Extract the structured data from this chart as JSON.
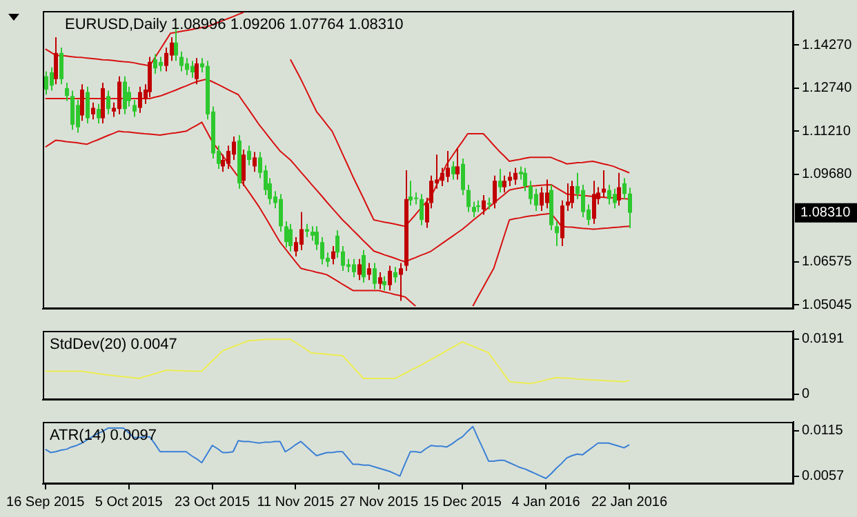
{
  "chart_data": [
    {
      "type": "candlestick",
      "title": "EURUSD,Daily 1.08996 1.09206 1.07764 1.08310",
      "categories": [
        null,
        null,
        null,
        null,
        null,
        null,
        null,
        null,
        null,
        null,
        null,
        null,
        null,
        null,
        null,
        null,
        null,
        null,
        null,
        null,
        null,
        null,
        null,
        null,
        null,
        null,
        null,
        null,
        null,
        null,
        null,
        null,
        null,
        null,
        null,
        null,
        null,
        null,
        null,
        null,
        null,
        null,
        null,
        null,
        null,
        null,
        null,
        null,
        null,
        null,
        null,
        null,
        null,
        null,
        null,
        null,
        null,
        null,
        null,
        null,
        null,
        null,
        null,
        null,
        null,
        null,
        null,
        null,
        null,
        null,
        null,
        null,
        null,
        null,
        null,
        null,
        null,
        null,
        null,
        null,
        null,
        null,
        null,
        null,
        null,
        null,
        null,
        null,
        null,
        null,
        null,
        null,
        null,
        null,
        null,
        null,
        null,
        null,
        null,
        null,
        null,
        null,
        null,
        null,
        null,
        null,
        null,
        null,
        null,
        null,
        null,
        null,
        null
      ],
      "ohlc": [
        [
          1.1316,
          1.1334,
          1.1251,
          1.1269
        ],
        [
          1.133,
          1.1348,
          1.1265,
          1.1283
        ],
        [
          1.1306,
          1.1455,
          1.1288,
          1.1399
        ],
        [
          1.1399,
          1.1418,
          1.1288,
          1.1306
        ],
        [
          1.1274,
          1.1293,
          1.1228,
          1.1246
        ],
        [
          1.1246,
          1.1265,
          1.1126,
          1.1144
        ],
        [
          1.1214,
          1.1232,
          1.1116,
          1.1135
        ],
        [
          1.1177,
          1.1288,
          1.1158,
          1.1269
        ],
        [
          1.126,
          1.1279,
          1.1149,
          1.1167
        ],
        [
          1.1181,
          1.1223,
          1.1163,
          1.1204
        ],
        [
          1.12,
          1.1218,
          1.1149,
          1.1167
        ],
        [
          1.1167,
          1.1293,
          1.1149,
          1.1274
        ],
        [
          1.1246,
          1.1265,
          1.1181,
          1.12
        ],
        [
          1.1191,
          1.1223,
          1.1172,
          1.1204
        ],
        [
          1.12,
          1.1316,
          1.1181,
          1.1297
        ],
        [
          1.1297,
          1.1316,
          1.1181,
          1.12
        ],
        [
          1.126,
          1.1279,
          1.1209,
          1.1228
        ],
        [
          1.1214,
          1.1232,
          1.1172,
          1.1191
        ],
        [
          1.1204,
          1.1279,
          1.1186,
          1.126
        ],
        [
          1.1237,
          1.1288,
          1.1218,
          1.1269
        ],
        [
          1.126,
          1.1385,
          1.1242,
          1.1367
        ],
        [
          1.1376,
          1.1395,
          1.1325,
          1.1344
        ],
        [
          1.1367,
          1.1385,
          1.1334,
          1.1353
        ],
        [
          1.1353,
          1.1418,
          1.1334,
          1.1399
        ],
        [
          1.139,
          1.1455,
          1.1371,
          1.1436
        ],
        [
          1.1436,
          1.1483,
          1.1371,
          1.139
        ],
        [
          1.1385,
          1.1404,
          1.1334,
          1.1353
        ],
        [
          1.1362,
          1.1381,
          1.132,
          1.1339
        ],
        [
          1.1353,
          1.1371,
          1.1311,
          1.133
        ],
        [
          1.1306,
          1.1381,
          1.1288,
          1.1362
        ],
        [
          1.1362,
          1.1381,
          1.133,
          1.1348
        ],
        [
          1.1353,
          1.1371,
          1.1163,
          1.1181
        ],
        [
          1.1191,
          1.1209,
          1.1024,
          1.1042
        ],
        [
          1.1051,
          1.107,
          1.0987,
          1.1005
        ],
        [
          1.0996,
          1.1038,
          1.0977,
          1.1019
        ],
        [
          1.1005,
          1.107,
          1.0987,
          1.1051
        ],
        [
          1.1038,
          1.1102,
          1.1019,
          1.1084
        ],
        [
          1.1088,
          1.1107,
          1.0917,
          1.0936
        ],
        [
          1.0945,
          1.1056,
          1.0926,
          1.1038
        ],
        [
          1.1051,
          1.107,
          1.1,
          1.1019
        ],
        [
          1.0996,
          1.1047,
          1.0977,
          1.1028
        ],
        [
          1.1028,
          1.1047,
          1.0954,
          1.0973
        ],
        [
          1.0982,
          1.1,
          1.0894,
          1.0912
        ],
        [
          1.0936,
          1.0954,
          1.0861,
          1.088
        ],
        [
          1.0889,
          1.0908,
          1.0847,
          1.0866
        ],
        [
          1.088,
          1.0898,
          1.0764,
          1.0783
        ],
        [
          1.0783,
          1.0801,
          1.0708,
          1.0727
        ],
        [
          1.0773,
          1.0792,
          1.0694,
          1.0713
        ],
        [
          1.0694,
          1.0745,
          1.0676,
          1.0727
        ],
        [
          1.0718,
          1.0834,
          1.0699,
          1.0773
        ],
        [
          1.0773,
          1.0792,
          1.0745,
          1.0764
        ],
        [
          1.0764,
          1.0783,
          1.0732,
          1.075
        ],
        [
          1.0764,
          1.0783,
          1.0699,
          1.0718
        ],
        [
          1.0727,
          1.0745,
          1.0648,
          1.0667
        ],
        [
          1.0671,
          1.069,
          1.0639,
          1.0657
        ],
        [
          1.0667,
          1.0713,
          1.0648,
          1.0694
        ],
        [
          1.075,
          1.0769,
          1.0671,
          1.069
        ],
        [
          1.0694,
          1.0713,
          1.0625,
          1.0643
        ],
        [
          1.0648,
          1.0667,
          1.062,
          1.0639
        ],
        [
          1.0648,
          1.0667,
          1.0602,
          1.062
        ],
        [
          1.0611,
          1.0667,
          1.0592,
          1.0648
        ],
        [
          1.0681,
          1.0699,
          1.0583,
          1.0602
        ],
        [
          1.0611,
          1.0653,
          1.0592,
          1.0634
        ],
        [
          1.0634,
          1.0653,
          1.056,
          1.0579
        ],
        [
          1.0579,
          1.062,
          1.056,
          1.0602
        ],
        [
          1.0588,
          1.0606,
          1.0555,
          1.0574
        ],
        [
          1.0574,
          1.0643,
          1.0555,
          1.0625
        ],
        [
          1.062,
          1.0639,
          1.0583,
          1.0602
        ],
        [
          1.0611,
          1.0653,
          1.0518,
          1.0634
        ],
        [
          1.0643,
          1.0982,
          1.0625,
          1.088
        ],
        [
          1.0889,
          1.0945,
          1.0857,
          1.0875
        ],
        [
          1.0885,
          1.0903,
          1.0861,
          1.088
        ],
        [
          1.088,
          1.0898,
          1.0787,
          1.0806
        ],
        [
          1.0797,
          1.0885,
          1.0778,
          1.0866
        ],
        [
          1.0866,
          1.0963,
          1.0847,
          1.0945
        ],
        [
          1.0936,
          1.1038,
          1.0917,
          1.0949
        ],
        [
          1.0945,
          1.0991,
          1.0926,
          1.0973
        ],
        [
          1.0959,
          1.1051,
          1.094,
          1.0991
        ],
        [
          1.0996,
          1.1014,
          1.0949,
          1.0968
        ],
        [
          1.0968,
          1.1061,
          1.0949,
          1.0996
        ],
        [
          1.1005,
          1.1024,
          1.0894,
          1.0912
        ],
        [
          1.0912,
          1.0931,
          1.0834,
          1.0852
        ],
        [
          1.0852,
          1.0871,
          1.0815,
          1.0834
        ],
        [
          1.0857,
          1.0875,
          1.0834,
          1.0852
        ],
        [
          1.0843,
          1.0894,
          1.0824,
          1.0875
        ],
        [
          1.0866,
          1.0885,
          1.0843,
          1.0861
        ],
        [
          1.0866,
          1.0963,
          1.0847,
          1.0945
        ],
        [
          1.0945,
          1.0987,
          1.0903,
          1.0922
        ],
        [
          1.0922,
          1.0963,
          1.0903,
          1.0945
        ],
        [
          1.0945,
          1.0977,
          1.0926,
          1.0959
        ],
        [
          1.0949,
          1.0991,
          1.0931,
          1.0973
        ],
        [
          1.0977,
          1.0996,
          1.0949,
          1.0968
        ],
        [
          1.0973,
          1.0991,
          1.0908,
          1.0926
        ],
        [
          1.0926,
          1.0945,
          1.0861,
          1.088
        ],
        [
          1.0898,
          1.0917,
          1.0838,
          1.0857
        ],
        [
          1.0857,
          1.0922,
          1.0838,
          1.0903
        ],
        [
          1.0866,
          1.0949,
          1.0847,
          1.0903
        ],
        [
          1.0912,
          1.0931,
          1.0769,
          1.0787
        ],
        [
          1.0783,
          1.0801,
          1.0713,
          1.0759
        ],
        [
          1.0741,
          1.0875,
          1.0713,
          1.0857
        ],
        [
          1.0857,
          1.0936,
          1.0838,
          1.0871
        ],
        [
          1.0866,
          1.0945,
          1.0847,
          1.0926
        ],
        [
          1.0926,
          1.0973,
          1.088,
          1.0898
        ],
        [
          1.0912,
          1.0931,
          1.0815,
          1.0834
        ],
        [
          1.0843,
          1.0861,
          1.0787,
          1.0806
        ],
        [
          1.081,
          1.0945,
          1.0792,
          1.0898
        ],
        [
          1.088,
          1.0922,
          1.0861,
          1.0903
        ],
        [
          1.0903,
          1.0982,
          1.0885,
          1.0917
        ],
        [
          1.0912,
          1.0931,
          1.0861,
          1.088
        ],
        [
          1.0898,
          1.0917,
          1.0847,
          1.0866
        ],
        [
          1.0875,
          1.0973,
          1.0857,
          1.0922
        ],
        [
          1.0936,
          1.0954,
          1.088,
          1.0898
        ],
        [
          1.08996,
          1.09206,
          1.07764,
          1.0831
        ]
      ],
      "colors": [
        "#2ec82e",
        "#2ec82e",
        "#c00000",
        "#2ec82e",
        "#2ec82e",
        "#2ec82e",
        "#2ec82e",
        "#c00000",
        "#2ec82e",
        "#c00000",
        "#2ec82e",
        "#c00000",
        "#2ec82e",
        "#c00000",
        "#c00000",
        "#2ec82e",
        "#2ec82e",
        "#2ec82e",
        "#c00000",
        "#c00000",
        "#c00000",
        "#2ec82e",
        "#2ec82e",
        "#c00000",
        "#c00000",
        "#2ec82e",
        "#2ec82e",
        "#2ec82e",
        "#2ec82e",
        "#c00000",
        "#2ec82e",
        "#2ec82e",
        "#2ec82e",
        "#2ec82e",
        "#c00000",
        "#c00000",
        "#c00000",
        "#2ec82e",
        "#c00000",
        "#2ec82e",
        "#c00000",
        "#2ec82e",
        "#2ec82e",
        "#2ec82e",
        "#2ec82e",
        "#2ec82e",
        "#2ec82e",
        "#2ec82e",
        "#c00000",
        "#c00000",
        "#2ec82e",
        "#2ec82e",
        "#2ec82e",
        "#2ec82e",
        "#2ec82e",
        "#c00000",
        "#2ec82e",
        "#2ec82e",
        "#2ec82e",
        "#2ec82e",
        "#c00000",
        "#2ec82e",
        "#c00000",
        "#2ec82e",
        "#c00000",
        "#2ec82e",
        "#c00000",
        "#2ec82e",
        "#c00000",
        "#c00000",
        "#2ec82e",
        "#2ec82e",
        "#2ec82e",
        "#c00000",
        "#c00000",
        "#c00000",
        "#c00000",
        "#c00000",
        "#2ec82e",
        "#c00000",
        "#2ec82e",
        "#2ec82e",
        "#2ec82e",
        "#2ec82e",
        "#c00000",
        "#2ec82e",
        "#c00000",
        "#2ec82e",
        "#c00000",
        "#c00000",
        "#c00000",
        "#2ec82e",
        "#2ec82e",
        "#2ec82e",
        "#2ec82e",
        "#c00000",
        "#c00000",
        "#2ec82e",
        "#2ec82e",
        "#c00000",
        "#c00000",
        "#c00000",
        "#2ec82e",
        "#2ec82e",
        "#2ec82e",
        "#c00000",
        "#c00000",
        "#c00000",
        "#2ec82e",
        "#2ec82e",
        "#c00000",
        "#2ec82e",
        "#2ec82e"
      ],
      "series": [
        {
          "type": "line",
          "color": "#d81010",
          "values": [
            1.1413,
            1.1402,
            1.139,
            1.139,
            1.1388,
            1.1386,
            1.1384,
            1.1383,
            1.1381,
            1.1379,
            1.1377,
            1.1375,
            1.1374,
            1.1372,
            1.137,
            1.1368,
            1.1367,
            1.1364,
            1.136,
            1.1357,
            1.1353,
            1.1382,
            1.1411,
            1.144,
            1.1469,
            1.1472,
            1.1476,
            1.1479,
            1.1482,
            1.1486,
            1.1489,
            1.1492,
            1.1499,
            1.1507,
            1.1514,
            1.1521,
            1.1528,
            1.1536,
            1.1543,
            null,
            null,
            null,
            null,
            null,
            null,
            null,
            null,
            1.1376,
            1.1341,
            1.1306,
            1.1268,
            1.1229,
            1.1191,
            1.1168,
            1.1144,
            1.1121,
            1.1081,
            1.104,
            1.1,
            1.0959,
            1.0921,
            1.0883,
            1.0844,
            1.0806,
            1.0802,
            1.0798,
            1.0795,
            1.0791,
            1.0787,
            1.0783,
            1.0804,
            1.0825,
            1.0847,
            1.0868,
            1.0889,
            1.0928,
            1.0966,
            1.1005,
            1.1032,
            1.1059,
            1.1085,
            1.1112,
            1.1112,
            1.1112,
            1.1112,
            1.1092,
            1.1071,
            1.1051,
            1.1033,
            1.1014,
            1.1018,
            1.1021,
            1.1025,
            1.1028,
            1.1028,
            1.1028,
            1.1028,
            1.1028,
            1.102,
            1.1013,
            1.1005,
            1.1007,
            1.1009,
            1.101,
            1.1012,
            1.1014,
            1.101,
            1.1005,
            1.1001,
            1.0996,
            1.0988,
            1.0981,
            1.0973
          ]
        },
        {
          "type": "line",
          "color": "#d81010",
          "values": [
            1.1237,
            1.1237,
            1.1237,
            1.1237,
            1.1237,
            1.1237,
            1.1237,
            1.1237,
            1.1237,
            1.1237,
            1.1237,
            1.1237,
            1.1237,
            1.1237,
            1.1237,
            1.1237,
            1.1237,
            1.1237,
            1.1237,
            1.1237,
            1.1237,
            1.1242,
            1.1246,
            1.1253,
            1.126,
            1.1267,
            1.1275,
            1.1282,
            1.129,
            1.1297,
            1.1302,
            1.1306,
            1.1297,
            1.1288,
            1.1279,
            1.1269,
            1.126,
            1.1251,
            1.1224,
            1.1198,
            1.1171,
            1.1144,
            1.1121,
            1.1097,
            1.1074,
            1.1051,
            1.1035,
            1.1019,
            1.0998,
            1.0976,
            1.0955,
            1.0933,
            1.0912,
            1.0891,
            1.0869,
            1.0848,
            1.0827,
            1.0806,
            1.0788,
            1.0769,
            1.0751,
            1.0732,
            1.0714,
            1.0695,
            1.0689,
            1.0682,
            1.0676,
            1.067,
            1.0663,
            1.0657,
            1.0665,
            1.0672,
            1.068,
            1.0687,
            1.0695,
            1.0708,
            1.0721,
            1.0734,
            1.0747,
            1.076,
            1.0773,
            1.0788,
            1.0804,
            1.0819,
            1.0834,
            1.085,
            1.0865,
            1.0881,
            1.0896,
            1.0912,
            1.0916,
            1.0919,
            1.0923,
            1.0926,
            1.0927,
            1.0929,
            1.093,
            1.0931,
            1.092,
            1.0909,
            1.0898,
            1.0896,
            1.0894,
            1.0893,
            1.0891,
            1.0889,
            1.0888,
            1.0886,
            1.0885,
            1.0884,
            1.0882,
            1.0881,
            1.088
          ]
        },
        {
          "type": "line",
          "color": "#d81010",
          "values": [
            1.1065,
            1.1077,
            1.1089,
            1.1087,
            1.1084,
            1.1082,
            1.108,
            1.1077,
            1.1075,
            1.1083,
            1.109,
            1.1098,
            1.1106,
            1.1113,
            1.1121,
            1.1119,
            1.1118,
            1.1116,
            1.1114,
            1.1112,
            1.1111,
            1.1109,
            1.1107,
            1.111,
            1.1113,
            1.1115,
            1.1118,
            1.1121,
            1.1132,
            1.1142,
            1.1153,
            1.1119,
            1.1084,
            1.1059,
            1.1034,
            1.1009,
            1.0984,
            1.0959,
            1.0932,
            1.0906,
            1.0879,
            1.0852,
            1.0821,
            1.079,
            1.0758,
            1.0727,
            1.0704,
            1.068,
            1.0657,
            1.0634,
            1.0629,
            1.0625,
            1.062,
            1.0616,
            1.0611,
            1.06,
            1.0589,
            1.0577,
            1.0566,
            1.0555,
            1.0555,
            1.0555,
            1.0555,
            1.0555,
            1.0555,
            1.055,
            1.0546,
            1.0541,
            1.0537,
            1.0532,
            1.0516,
            1.05,
            null,
            null,
            null,
            null,
            null,
            null,
            null,
            null,
            null,
            null,
            1.05,
            1.0534,
            1.0567,
            1.0601,
            1.0634,
            1.0691,
            1.0749,
            1.0806,
            1.081,
            1.0813,
            1.0817,
            1.082,
            1.0822,
            1.0825,
            1.0827,
            1.0829,
            1.0806,
            1.0783,
            1.0781,
            1.078,
            1.0778,
            1.0776,
            1.0775,
            1.0773,
            1.0774,
            1.0776,
            1.0777,
            1.0779,
            1.078,
            1.0782,
            1.0783
          ]
        }
      ],
      "ylim": [
        1.049,
        1.1548
      ],
      "yticks": [
        {
          "value": 1.1427,
          "label": "1.14270"
        },
        {
          "value": 1.1274,
          "label": "1.12740"
        },
        {
          "value": 1.1121,
          "label": "1.11210"
        },
        {
          "value": 1.0968,
          "label": "1.09680"
        },
        {
          "value": 1.06575,
          "label": "1.06575"
        },
        {
          "value": 1.05045,
          "label": "1.05045"
        }
      ],
      "tick_labels": "y",
      "annotations": [
        "1.08310"
      ]
    },
    {
      "type": "line",
      "title": "StdDev(20) 0.0047",
      "color": "#ecec50",
      "categories": [
        null,
        null,
        null,
        null,
        null,
        null,
        null,
        null,
        null,
        null,
        null,
        null,
        null,
        null,
        null,
        null,
        null,
        null,
        null,
        null,
        null,
        null,
        null,
        null,
        null,
        null,
        null,
        null,
        null,
        null,
        null,
        null,
        null,
        null,
        null,
        null,
        null,
        null,
        null,
        null,
        null,
        null,
        null,
        null,
        null,
        null,
        null,
        null,
        null,
        null,
        null,
        null,
        null,
        null,
        null,
        null,
        null,
        null,
        null,
        null,
        null,
        null,
        null,
        null,
        null,
        null,
        null,
        null,
        null,
        null,
        null,
        null,
        null,
        null,
        null,
        null,
        null,
        null,
        null,
        null,
        null,
        null,
        null,
        null,
        null,
        null,
        null,
        null,
        null,
        null,
        null,
        null,
        null,
        null,
        null,
        null,
        null,
        null,
        null,
        null,
        null,
        null,
        null,
        null,
        null,
        null,
        null,
        null,
        null,
        null,
        null,
        null,
        null
      ],
      "values": [
        0.0079,
        0.0079,
        0.0079,
        0.0079,
        0.0079,
        0.0079,
        0.0079,
        0.0079,
        0.0076,
        0.0074,
        0.0071,
        0.0069,
        0.0066,
        0.0064,
        0.0062,
        0.006,
        0.0058,
        0.0056,
        0.0054,
        0.006,
        0.0065,
        0.0071,
        0.0076,
        0.0082,
        0.0082,
        0.0081,
        0.0081,
        0.008,
        0.008,
        0.0079,
        0.0079,
        0.0097,
        0.0115,
        0.0132,
        0.015,
        0.0157,
        0.0164,
        0.0171,
        0.0178,
        0.0185,
        0.0186,
        0.0188,
        0.0189,
        0.019,
        0.019,
        0.019,
        0.019,
        0.019,
        0.0178,
        0.0167,
        0.0155,
        0.0143,
        0.0141,
        0.014,
        0.0138,
        0.0136,
        0.0135,
        0.0133,
        0.0113,
        0.0094,
        0.0074,
        0.0054,
        0.0054,
        0.0054,
        0.0054,
        0.0054,
        0.0054,
        0.0054,
        0.0063,
        0.0072,
        0.0082,
        0.0091,
        0.01,
        0.011,
        0.012,
        0.013,
        0.014,
        0.0151,
        0.0161,
        0.0171,
        0.0181,
        0.0173,
        0.0166,
        0.0158,
        0.0151,
        0.0143,
        0.0118,
        0.0093,
        0.0068,
        0.0043,
        0.0041,
        0.004,
        0.0038,
        0.0036,
        0.004,
        0.0044,
        0.0049,
        0.0053,
        0.0057,
        0.0056,
        0.0055,
        0.0054,
        0.0052,
        0.0051,
        0.005,
        0.0049,
        0.0048,
        0.0047,
        0.0046,
        0.0045,
        0.0044,
        0.0043,
        0.0047
      ],
      "ylim": [
        -0.002,
        0.0219
      ],
      "yticks": [
        0.0191,
        0
      ],
      "tick_labels": "y"
    },
    {
      "type": "line",
      "title": "ATR(14) 0.0097",
      "color": "#3a7fd5",
      "categories": [
        "16 Sep 2015",
        null,
        null,
        null,
        null,
        null,
        null,
        null,
        null,
        null,
        null,
        null,
        null,
        null,
        null,
        null,
        "5 Oct 2015",
        null,
        null,
        null,
        null,
        null,
        null,
        null,
        null,
        null,
        null,
        null,
        null,
        null,
        null,
        null,
        "23 Oct 2015",
        null,
        null,
        null,
        null,
        null,
        null,
        null,
        null,
        null,
        null,
        null,
        null,
        null,
        null,
        null,
        "11 Nov 2015",
        null,
        null,
        null,
        null,
        null,
        null,
        null,
        null,
        null,
        null,
        null,
        null,
        null,
        null,
        null,
        "27 Nov 2015",
        null,
        null,
        null,
        null,
        null,
        null,
        null,
        null,
        null,
        null,
        null,
        null,
        null,
        null,
        null,
        "15 Dec 2015",
        null,
        null,
        null,
        null,
        null,
        null,
        null,
        null,
        null,
        null,
        null,
        null,
        null,
        null,
        null,
        "4 Jan 2016",
        null,
        null,
        null,
        null,
        null,
        null,
        null,
        null,
        null,
        null,
        null,
        null,
        null,
        null,
        null,
        "22 Jan 2016"
      ],
      "values": [
        0.0091,
        0.0087,
        0.0088,
        0.009,
        0.0091,
        0.0094,
        0.0096,
        0.0099,
        0.0103,
        0.0107,
        0.0111,
        0.0114,
        0.0118,
        0.0118,
        0.0118,
        0.0118,
        0.0112,
        0.0106,
        0.0106,
        0.0107,
        0.0107,
        0.0098,
        0.0088,
        0.0088,
        0.0088,
        0.0088,
        0.0088,
        0.0088,
        0.0083,
        0.0079,
        0.0074,
        0.0085,
        0.0096,
        0.0092,
        0.0087,
        0.0087,
        0.0088,
        0.0102,
        0.0101,
        0.0101,
        0.01,
        0.0099,
        0.01,
        0.01,
        0.0101,
        0.0101,
        0.0088,
        0.0092,
        0.0097,
        0.0101,
        0.0095,
        0.0089,
        0.0083,
        0.0085,
        0.0087,
        0.0087,
        0.0088,
        0.0088,
        0.008,
        0.0072,
        0.0072,
        0.0071,
        0.0071,
        0.0069,
        0.0067,
        0.0065,
        0.0063,
        0.006,
        0.0057,
        0.0073,
        0.0088,
        0.0088,
        0.0087,
        0.0092,
        0.0096,
        0.0095,
        0.0095,
        0.0094,
        0.0098,
        0.0103,
        0.0107,
        0.0114,
        0.012,
        0.0105,
        0.0091,
        0.0076,
        0.0076,
        0.0077,
        0.0077,
        0.0074,
        0.0071,
        0.0068,
        0.0066,
        0.0063,
        0.006,
        0.0057,
        0.0054,
        0.006,
        0.0067,
        0.0073,
        0.008,
        0.0083,
        0.0085,
        0.0084,
        0.0089,
        0.0094,
        0.0099,
        0.0099,
        0.0099,
        0.0097,
        0.0095,
        0.0093,
        0.0097
      ],
      "ylim": [
        0.0047,
        0.0126
      ],
      "yticks": [
        0.0115,
        0.0057
      ]
    }
  ]
}
